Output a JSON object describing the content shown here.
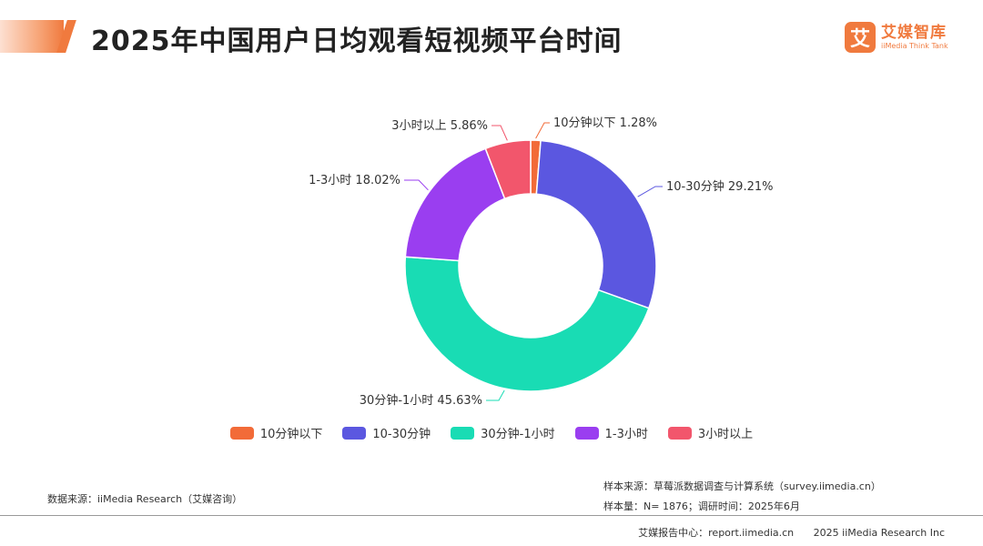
{
  "title": "2025年中国用户日均观看短视频平台时间",
  "logo": {
    "mark": "艾",
    "name_cn": "艾媒智库",
    "name_en": "iiMedia Think Tank"
  },
  "chart_data": {
    "type": "pie",
    "donut": true,
    "title": "2025年中国用户日均观看短视频平台时间",
    "unit": "%",
    "slices": [
      {
        "label": "10分钟以下",
        "value": 1.28,
        "color": "#f26b38"
      },
      {
        "label": "10-30分钟",
        "value": 29.21,
        "color": "#5b57e0"
      },
      {
        "label": "30分钟-1小时",
        "value": 45.63,
        "color": "#19dcb4"
      },
      {
        "label": "1-3小时",
        "value": 18.02,
        "color": "#9a3ef0"
      },
      {
        "label": "3小时以上",
        "value": 5.86,
        "color": "#f2566c"
      }
    ],
    "legend_position": "bottom"
  },
  "source_left": "数据来源：iiMedia Research（艾媒咨询）",
  "source_right": [
    "样本来源：草莓派数据调查与计算系统（survey.iimedia.cn）",
    "样本量：N= 1876；调研时间：2025年6月"
  ],
  "footer": {
    "center": "艾媒报告中心：report.iimedia.cn",
    "copyright": "2025 iiMedia Research Inc"
  }
}
